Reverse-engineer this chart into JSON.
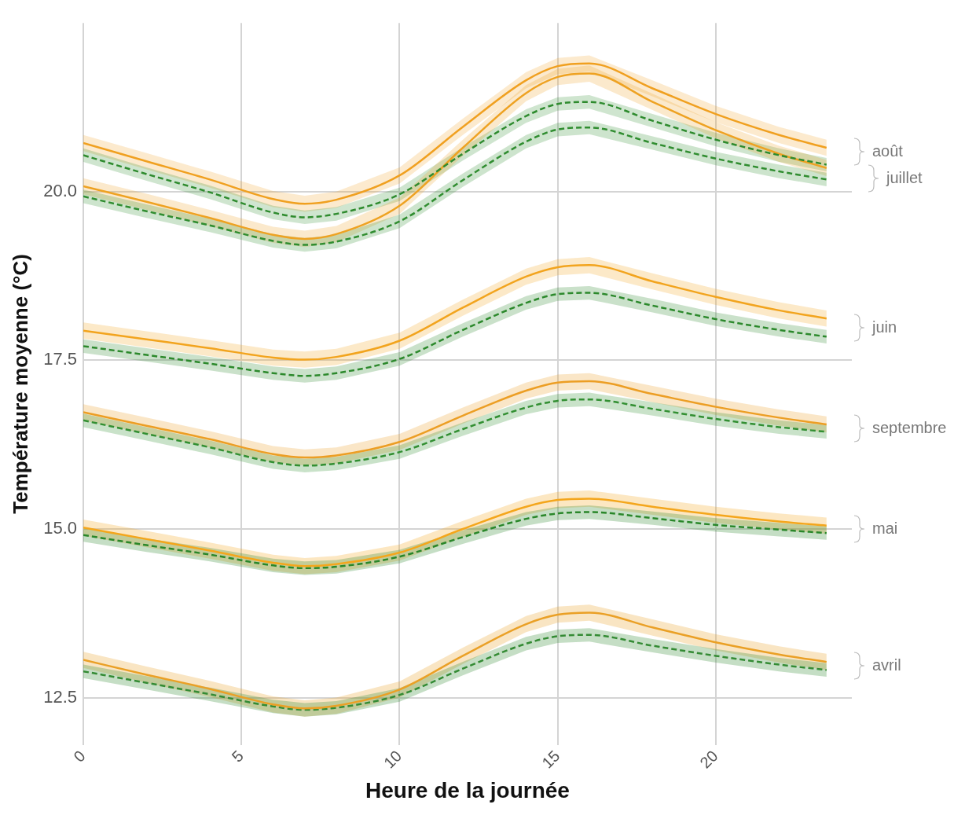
{
  "chart_data": {
    "type": "line",
    "xlabel": "Heure de la journée",
    "ylabel": "Température moyenne (°C)",
    "xlim": [
      0,
      24.3
    ],
    "ylim": [
      11.8,
      22.5
    ],
    "xticks": [
      0,
      5,
      10,
      15,
      20
    ],
    "yticks": [
      {
        "value": 12.5,
        "label": "12.5"
      },
      {
        "value": 15,
        "label": "15.0"
      },
      {
        "value": 17.5,
        "label": "17.5"
      },
      {
        "value": 20,
        "label": "20.0"
      }
    ],
    "grid": true,
    "legend": false,
    "x": [
      0,
      2,
      4,
      6,
      7,
      8,
      10,
      12,
      14,
      15,
      16,
      18,
      20,
      22,
      23.5
    ],
    "series": [
      {
        "color": "#f0a020",
        "line_style": "solid",
        "values": [
          20.72,
          20.45,
          20.18,
          19.89,
          19.82,
          19.88,
          20.24,
          20.96,
          21.65,
          21.86,
          21.9,
          21.53,
          21.15,
          20.84,
          20.65
        ],
        "lower": [
          20.6,
          20.33,
          20.06,
          19.77,
          19.7,
          19.76,
          20.12,
          20.84,
          21.53,
          21.74,
          21.78,
          21.41,
          21.03,
          20.72,
          20.53
        ],
        "upper": [
          20.84,
          20.57,
          20.3,
          20.01,
          19.94,
          20.0,
          20.36,
          21.08,
          21.77,
          21.98,
          22.02,
          21.65,
          21.27,
          20.96,
          20.77
        ]
      },
      {
        "color": "#2e8b2e",
        "line_style": "dashed",
        "values": [
          20.54,
          20.26,
          19.99,
          19.69,
          19.62,
          19.67,
          19.96,
          20.56,
          21.12,
          21.3,
          21.33,
          21.05,
          20.77,
          20.54,
          20.4
        ],
        "lower": [
          20.44,
          20.16,
          19.89,
          19.59,
          19.52,
          19.57,
          19.86,
          20.46,
          21.02,
          21.2,
          21.23,
          20.95,
          20.67,
          20.44,
          20.3
        ],
        "upper": [
          20.64,
          20.36,
          20.09,
          19.79,
          19.72,
          19.77,
          20.06,
          20.66,
          21.22,
          21.4,
          21.43,
          21.15,
          20.87,
          20.64,
          20.5
        ]
      },
      {
        "color": "#eea222",
        "line_style": "solid",
        "values": [
          20.08,
          19.85,
          19.61,
          19.36,
          19.3,
          19.37,
          19.79,
          20.65,
          21.46,
          21.7,
          21.75,
          21.33,
          20.91,
          20.56,
          20.35
        ],
        "lower": [
          19.96,
          19.73,
          19.49,
          19.24,
          19.18,
          19.25,
          19.67,
          20.53,
          21.34,
          21.58,
          21.63,
          21.21,
          20.79,
          20.44,
          20.23
        ],
        "upper": [
          20.2,
          19.97,
          19.73,
          19.48,
          19.42,
          19.49,
          19.91,
          20.77,
          21.58,
          21.82,
          21.87,
          21.45,
          21.03,
          20.68,
          20.47
        ]
      },
      {
        "color": "#308d30",
        "line_style": "dashed",
        "values": [
          19.93,
          19.71,
          19.5,
          19.27,
          19.21,
          19.26,
          19.56,
          20.17,
          20.74,
          20.92,
          20.95,
          20.72,
          20.49,
          20.3,
          20.18
        ],
        "lower": [
          19.83,
          19.61,
          19.4,
          19.17,
          19.11,
          19.16,
          19.46,
          20.07,
          20.64,
          20.82,
          20.85,
          20.62,
          20.39,
          20.2,
          20.08
        ],
        "upper": [
          20.03,
          19.81,
          19.6,
          19.37,
          19.31,
          19.36,
          19.66,
          20.27,
          20.84,
          21.02,
          21.05,
          20.82,
          20.59,
          20.4,
          20.28
        ]
      },
      {
        "color": "#f2a41e",
        "line_style": "solid",
        "values": [
          17.94,
          17.81,
          17.68,
          17.54,
          17.51,
          17.55,
          17.79,
          18.28,
          18.74,
          18.88,
          18.91,
          18.67,
          18.44,
          18.24,
          18.12
        ],
        "lower": [
          17.82,
          17.69,
          17.56,
          17.42,
          17.39,
          17.43,
          17.67,
          18.16,
          18.62,
          18.76,
          18.79,
          18.55,
          18.32,
          18.12,
          18.0
        ],
        "upper": [
          18.06,
          17.93,
          17.8,
          17.66,
          17.63,
          17.67,
          17.91,
          18.4,
          18.86,
          19.0,
          19.03,
          18.79,
          18.56,
          18.36,
          18.24
        ]
      },
      {
        "color": "#2c892c",
        "line_style": "dashed",
        "values": [
          17.71,
          17.58,
          17.45,
          17.31,
          17.27,
          17.31,
          17.52,
          17.95,
          18.35,
          18.48,
          18.5,
          18.31,
          18.11,
          17.95,
          17.85
        ],
        "lower": [
          17.61,
          17.48,
          17.35,
          17.21,
          17.17,
          17.21,
          17.42,
          17.85,
          18.25,
          18.38,
          18.4,
          18.21,
          18.01,
          17.85,
          17.75
        ],
        "upper": [
          17.81,
          17.68,
          17.55,
          17.41,
          17.37,
          17.41,
          17.62,
          18.05,
          18.45,
          18.58,
          18.6,
          18.41,
          18.21,
          18.05,
          17.95
        ]
      },
      {
        "color": "#ec9e24",
        "line_style": "solid",
        "values": [
          16.73,
          16.53,
          16.33,
          16.11,
          16.06,
          16.09,
          16.29,
          16.68,
          17.05,
          17.17,
          17.19,
          17.0,
          16.81,
          16.65,
          16.55
        ],
        "lower": [
          16.61,
          16.41,
          16.21,
          15.99,
          15.94,
          15.97,
          16.17,
          16.56,
          16.93,
          17.05,
          17.07,
          16.88,
          16.69,
          16.53,
          16.43
        ],
        "upper": [
          16.85,
          16.65,
          16.45,
          16.23,
          16.18,
          16.21,
          16.41,
          16.8,
          17.17,
          17.29,
          17.31,
          17.12,
          16.93,
          16.77,
          16.67
        ]
      },
      {
        "color": "#328f32",
        "line_style": "dashed",
        "values": [
          16.61,
          16.41,
          16.21,
          15.99,
          15.94,
          15.97,
          16.14,
          16.48,
          16.8,
          16.9,
          16.92,
          16.78,
          16.63,
          16.51,
          16.44
        ],
        "lower": [
          16.51,
          16.31,
          16.11,
          15.89,
          15.84,
          15.87,
          16.04,
          16.38,
          16.7,
          16.8,
          16.82,
          16.68,
          16.53,
          16.41,
          16.34
        ],
        "upper": [
          16.71,
          16.51,
          16.31,
          16.09,
          16.04,
          16.07,
          16.24,
          16.58,
          16.9,
          17.0,
          17.02,
          16.88,
          16.73,
          16.61,
          16.54
        ]
      },
      {
        "color": "#f4a61c",
        "line_style": "solid",
        "values": [
          15.02,
          14.85,
          14.68,
          14.5,
          14.45,
          14.48,
          14.65,
          15.0,
          15.33,
          15.43,
          15.45,
          15.33,
          15.21,
          15.11,
          15.05
        ],
        "lower": [
          14.9,
          14.73,
          14.56,
          14.38,
          14.33,
          14.36,
          14.53,
          14.88,
          15.21,
          15.31,
          15.33,
          15.21,
          15.09,
          14.99,
          14.93
        ],
        "upper": [
          15.14,
          14.97,
          14.8,
          14.62,
          14.57,
          14.6,
          14.77,
          15.12,
          15.45,
          15.55,
          15.57,
          15.45,
          15.33,
          15.23,
          15.17
        ]
      },
      {
        "color": "#2a872a",
        "line_style": "dashed",
        "values": [
          14.91,
          14.76,
          14.62,
          14.46,
          14.42,
          14.44,
          14.59,
          14.88,
          15.15,
          15.23,
          15.25,
          15.16,
          15.06,
          14.99,
          14.94
        ],
        "lower": [
          14.81,
          14.66,
          14.52,
          14.36,
          14.32,
          14.34,
          14.49,
          14.78,
          15.05,
          15.13,
          15.15,
          15.06,
          14.96,
          14.89,
          14.84
        ],
        "upper": [
          15.01,
          14.86,
          14.72,
          14.56,
          14.52,
          14.54,
          14.69,
          14.98,
          15.25,
          15.33,
          15.35,
          15.26,
          15.16,
          15.09,
          15.04
        ]
      },
      {
        "color": "#eaa026",
        "line_style": "solid",
        "values": [
          13.06,
          12.84,
          12.63,
          12.4,
          12.34,
          12.38,
          12.62,
          13.12,
          13.59,
          13.73,
          13.76,
          13.54,
          13.32,
          13.14,
          13.03
        ],
        "lower": [
          12.94,
          12.72,
          12.51,
          12.28,
          12.22,
          12.26,
          12.5,
          13.0,
          13.47,
          13.61,
          13.64,
          13.42,
          13.2,
          13.02,
          12.91
        ],
        "upper": [
          13.18,
          12.96,
          12.75,
          12.52,
          12.46,
          12.5,
          12.74,
          13.24,
          13.71,
          13.85,
          13.88,
          13.66,
          13.44,
          13.26,
          13.15
        ]
      },
      {
        "color": "#348b34",
        "line_style": "dashed",
        "values": [
          12.89,
          12.72,
          12.55,
          12.37,
          12.32,
          12.35,
          12.54,
          12.93,
          13.3,
          13.41,
          13.43,
          13.27,
          13.12,
          12.99,
          12.91
        ],
        "lower": [
          12.79,
          12.62,
          12.45,
          12.27,
          12.22,
          12.25,
          12.44,
          12.83,
          13.2,
          13.31,
          13.33,
          13.17,
          13.02,
          12.89,
          12.81
        ],
        "upper": [
          12.99,
          12.82,
          12.65,
          12.47,
          12.42,
          12.45,
          12.64,
          13.03,
          13.4,
          13.51,
          13.53,
          13.37,
          13.22,
          13.09,
          13.01
        ]
      }
    ],
    "annotations": [
      "août",
      "juillet",
      "juin",
      "septembre",
      "mai",
      "avril"
    ]
  }
}
